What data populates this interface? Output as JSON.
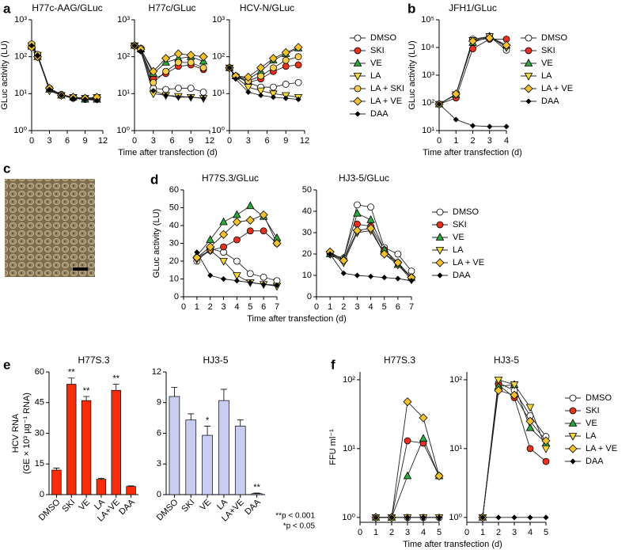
{
  "chart_data": [
    {
      "type": "line",
      "panel": "a",
      "title": "H77c-AAG/GLuc",
      "ylabel": "GLuc activity (LU)",
      "log_y": true,
      "x": [
        0,
        1,
        3,
        5,
        7,
        9,
        11
      ],
      "xlim": [
        0,
        12
      ],
      "xticks": [
        0,
        3,
        6,
        9,
        12
      ],
      "ylim": [
        1,
        1000
      ],
      "yticks": [
        {
          "value": 1,
          "label": "10⁰"
        },
        {
          "value": 10,
          "label": "10¹"
        },
        {
          "value": 100,
          "label": "10²"
        },
        {
          "value": 1000,
          "label": "10³"
        }
      ],
      "series": [
        {
          "color": "#ffffff",
          "marker": "circle",
          "values": [
            200,
            110,
            14,
            9,
            8,
            7.5,
            7
          ]
        },
        {
          "color": "#e8321e",
          "marker": "circle",
          "values": [
            210,
            105,
            13,
            9,
            7.5,
            7,
            7.5
          ]
        },
        {
          "color": "#2ca83a",
          "marker": "triangle-up",
          "values": [
            190,
            100,
            13,
            9,
            8,
            7,
            7
          ]
        },
        {
          "color": "#f7d83c",
          "marker": "triangle-down",
          "values": [
            200,
            110,
            12,
            9,
            8,
            7.5,
            8
          ]
        },
        {
          "color": "#f6cf52",
          "marker": "circle",
          "values": [
            220,
            115,
            14,
            9.5,
            8,
            7.5,
            7.5
          ]
        },
        {
          "color": "#f2c12e",
          "marker": "diamond",
          "values": [
            180,
            100,
            14,
            9,
            8,
            7.5,
            8
          ]
        },
        {
          "color": "#000000",
          "marker": "diamond-small",
          "values": [
            200,
            105,
            13,
            9,
            7.5,
            7,
            6.5
          ]
        }
      ]
    },
    {
      "type": "line",
      "title": "H77c/GLuc",
      "xlabel": "Time after transfection (d)",
      "log_y": true,
      "x": [
        0,
        1,
        3,
        5,
        7,
        9,
        11
      ],
      "xlim": [
        0,
        12
      ],
      "xticks": [
        0,
        3,
        6,
        9,
        12
      ],
      "ylim": [
        1,
        1000
      ],
      "yticks": [
        {
          "value": 1,
          "label": "10⁰"
        },
        {
          "value": 10,
          "label": "10¹"
        },
        {
          "value": 100,
          "label": "10²"
        },
        {
          "value": 1000,
          "label": "10³"
        }
      ],
      "series": [
        {
          "color": "#ffffff",
          "marker": "circle",
          "values": [
            200,
            170,
            14,
            13,
            14,
            14,
            11
          ]
        },
        {
          "color": "#e8321e",
          "marker": "circle",
          "values": [
            200,
            150,
            25,
            35,
            55,
            60,
            45
          ]
        },
        {
          "color": "#2ca83a",
          "marker": "triangle-up",
          "values": [
            200,
            160,
            35,
            70,
            90,
            100,
            75
          ]
        },
        {
          "color": "#f7d83c",
          "marker": "triangle-down",
          "values": [
            200,
            150,
            10,
            9,
            8.5,
            8,
            7.5
          ]
        },
        {
          "color": "#f6cf52",
          "marker": "circle",
          "values": [
            200,
            155,
            20,
            40,
            70,
            70,
            50
          ]
        },
        {
          "color": "#f2c12e",
          "marker": "diamond",
          "values": [
            200,
            160,
            40,
            90,
            120,
            110,
            100
          ]
        },
        {
          "color": "#000000",
          "marker": "diamond-small",
          "values": [
            200,
            140,
            12,
            9,
            8,
            8,
            7.5
          ]
        }
      ]
    },
    {
      "type": "line",
      "title": "HCV-N/GLuc",
      "log_y": true,
      "x": [
        0,
        1,
        3,
        5,
        7,
        9,
        11
      ],
      "xlim": [
        0,
        12
      ],
      "xticks": [
        0,
        3,
        6,
        9,
        12
      ],
      "ylim": [
        1,
        1000
      ],
      "yticks": [
        {
          "value": 1,
          "label": "10⁰"
        },
        {
          "value": 10,
          "label": "10¹"
        },
        {
          "value": 100,
          "label": "10²"
        },
        {
          "value": 1000,
          "label": "10³"
        }
      ],
      "series": [
        {
          "name": "DMSO",
          "color": "#ffffff",
          "marker": "circle",
          "values": [
            50,
            30,
            20,
            15,
            15,
            18,
            20
          ]
        },
        {
          "name": "SKI",
          "color": "#e8321e",
          "marker": "circle",
          "values": [
            50,
            30,
            20,
            25,
            40,
            55,
            60
          ]
        },
        {
          "name": "VE",
          "color": "#2ca83a",
          "marker": "triangle-up",
          "values": [
            50,
            30,
            25,
            40,
            80,
            120,
            170
          ]
        },
        {
          "name": "LA",
          "color": "#f7d83c",
          "marker": "triangle-down",
          "values": [
            50,
            28,
            15,
            12,
            10,
            9,
            8
          ]
        },
        {
          "name": "LA + SKI",
          "color": "#f6cf52",
          "marker": "circle",
          "values": [
            50,
            30,
            22,
            30,
            50,
            80,
            100
          ]
        },
        {
          "name": "LA + VE",
          "color": "#f2c12e",
          "marker": "diamond",
          "values": [
            50,
            30,
            28,
            50,
            90,
            130,
            180
          ]
        },
        {
          "name": "DAA",
          "color": "#000000",
          "marker": "diamond-small",
          "values": [
            50,
            25,
            11,
            9,
            8,
            7.5,
            7
          ]
        }
      ]
    },
    {
      "type": "line",
      "panel": "b",
      "title": "JFH1/GLuc",
      "ylabel": "GLuc activity (LU)",
      "xlabel": "Time after transfection (d)",
      "log_y": true,
      "x": [
        0,
        1,
        2,
        3,
        4
      ],
      "xlim": [
        0,
        4
      ],
      "xticks": [
        0,
        1,
        2,
        3,
        4
      ],
      "ylim": [
        10,
        100000
      ],
      "yticks": [
        {
          "value": 10,
          "label": "10¹"
        },
        {
          "value": 100,
          "label": "10²"
        },
        {
          "value": 1000,
          "label": "10³"
        },
        {
          "value": 10000,
          "label": "10⁴"
        },
        {
          "value": 100000,
          "label": "10⁵"
        }
      ],
      "series": [
        {
          "name": "DMSO",
          "color": "#ffffff",
          "marker": "circle",
          "values": [
            90,
            200,
            20000,
            25000,
            8000
          ]
        },
        {
          "name": "SKI",
          "color": "#e8321e",
          "marker": "circle",
          "values": [
            90,
            150,
            9000,
            20000,
            20000
          ]
        },
        {
          "name": "VE",
          "color": "#2ca83a",
          "marker": "triangle-up",
          "values": [
            90,
            200,
            15000,
            25000,
            12000
          ]
        },
        {
          "name": "LA",
          "color": "#f7d83c",
          "marker": "triangle-down",
          "values": [
            90,
            200,
            18000,
            25000,
            10000
          ]
        },
        {
          "name": "LA + VE",
          "color": "#f2c12e",
          "marker": "diamond",
          "values": [
            90,
            210,
            17000,
            22000,
            12000
          ]
        },
        {
          "name": "DAA",
          "color": "#000000",
          "marker": "diamond-small",
          "values": [
            90,
            25,
            15,
            14,
            14
          ]
        }
      ]
    },
    {
      "type": "line",
      "panel": "d",
      "title": "H77S.3/GLuc",
      "ylabel": "GLuc activity (LU)",
      "xlabel": "Time after transfection (d)",
      "x": [
        1,
        2,
        3,
        4,
        5,
        6,
        7
      ],
      "xlim": [
        0,
        7
      ],
      "xticks": [
        0,
        1,
        2,
        3,
        4,
        5,
        6,
        7
      ],
      "ylim": [
        0,
        60
      ],
      "yticks": [
        0,
        10,
        20,
        30,
        40,
        50,
        60
      ],
      "series": [
        {
          "color": "#ffffff",
          "marker": "circle",
          "values": [
            20,
            27,
            25,
            20,
            13,
            11,
            9
          ]
        },
        {
          "color": "#e8321e",
          "marker": "circle",
          "values": [
            22,
            26,
            28,
            32,
            37,
            37,
            30
          ]
        },
        {
          "color": "#2ca83a",
          "marker": "triangle-up",
          "values": [
            23,
            32,
            42,
            46,
            51,
            45,
            33
          ]
        },
        {
          "color": "#f7d83c",
          "marker": "triangle-down",
          "values": [
            21,
            26,
            20,
            12,
            8,
            7,
            6
          ]
        },
        {
          "color": "#f2c12e",
          "marker": "diamond",
          "values": [
            22,
            28,
            35,
            42,
            43,
            46,
            30
          ]
        },
        {
          "color": "#000000",
          "marker": "diamond-small",
          "values": [
            25,
            12,
            10,
            9,
            8,
            7,
            6.5
          ]
        }
      ]
    },
    {
      "type": "line",
      "title": "HJ3-5/GLuc",
      "x": [
        1,
        2,
        3,
        4,
        5,
        6,
        7
      ],
      "xlim": [
        0,
        7
      ],
      "xticks": [
        0,
        1,
        2,
        3,
        4,
        5,
        6,
        7
      ],
      "ylim": [
        0,
        50
      ],
      "yticks": [
        0,
        10,
        20,
        30,
        40,
        50
      ],
      "series": [
        {
          "name": "DMSO",
          "color": "#ffffff",
          "marker": "circle",
          "values": [
            20,
            18,
            43,
            42,
            23,
            20,
            12
          ]
        },
        {
          "name": "SKI",
          "color": "#e8321e",
          "marker": "circle",
          "values": [
            20,
            17,
            34,
            33,
            22,
            16,
            9
          ]
        },
        {
          "name": "VE",
          "color": "#2ca83a",
          "marker": "triangle-up",
          "values": [
            20,
            18,
            39,
            36,
            22,
            15,
            9
          ]
        },
        {
          "name": "LA",
          "color": "#f7d83c",
          "marker": "triangle-down",
          "values": [
            20,
            16,
            30,
            31,
            20,
            15,
            8
          ]
        },
        {
          "name": "LA + VE",
          "color": "#f2c12e",
          "marker": "diamond",
          "values": [
            21,
            17,
            31,
            32,
            20,
            16,
            9
          ]
        },
        {
          "name": "DAA",
          "color": "#000000",
          "marker": "diamond-small",
          "values": [
            20,
            11,
            10,
            9.5,
            9,
            8.5,
            7.5
          ]
        }
      ]
    },
    {
      "type": "bar",
      "panel": "e",
      "title": "H77S.3",
      "ylabel": [
        "HCV RNA",
        "(GE × 10³ µg⁻¹ RNA)"
      ],
      "color": "#f52d0a",
      "categories": [
        "DMSO",
        "SKI",
        "VE",
        "LA",
        "LA+VE",
        "DAA"
      ],
      "values": [
        12,
        54,
        46,
        7.5,
        51,
        4
      ],
      "errors": [
        1,
        3,
        2,
        0.5,
        3,
        0.3
      ],
      "significance": [
        null,
        "**",
        "**",
        null,
        "**",
        null
      ],
      "ylim": [
        0,
        60
      ],
      "yticks": [
        0,
        15,
        30,
        45,
        60
      ]
    },
    {
      "type": "bar",
      "title": "HJ3-5",
      "color": "#c9cdf2",
      "categories": [
        "DMSO",
        "SKI",
        "VE",
        "LA",
        "LA+VE",
        "DAA"
      ],
      "values": [
        9.6,
        7.3,
        5.8,
        9.2,
        6.7,
        0.1
      ],
      "errors": [
        0.9,
        0.6,
        0.9,
        1.1,
        0.6,
        0.05
      ],
      "significance": [
        null,
        null,
        "*",
        null,
        null,
        "**"
      ],
      "notes": [
        "**p < 0.001",
        "*p < 0.05"
      ],
      "ylim": [
        0,
        12
      ],
      "yticks": [
        0,
        3,
        6,
        9,
        12
      ]
    },
    {
      "type": "line",
      "panel": "f",
      "title": "H77S.3",
      "ylabel": "FFU ml⁻¹",
      "xlabel": "Time after transfection (d)",
      "log_y": true,
      "x": [
        1,
        2,
        3,
        4,
        5
      ],
      "xlim": [
        0,
        5
      ],
      "xticks": [
        0,
        1,
        2,
        3,
        4,
        5
      ],
      "ylim": [
        0.85,
        130
      ],
      "yticks": [
        {
          "value": 1,
          "label": "10⁰"
        },
        {
          "value": 10,
          "label": "10¹"
        },
        {
          "value": 100,
          "label": "10²"
        }
      ],
      "series": [
        {
          "color": "#ffffff",
          "marker": "circle",
          "values": [
            1,
            1,
            1,
            1,
            1
          ]
        },
        {
          "color": "#e8321e",
          "marker": "circle",
          "values": [
            1,
            1,
            13,
            12,
            4
          ]
        },
        {
          "color": "#2ca83a",
          "marker": "triangle-up",
          "values": [
            1,
            1,
            4,
            14,
            4
          ]
        },
        {
          "color": "#f7d83c",
          "marker": "triangle-down",
          "values": [
            1,
            1,
            1,
            1,
            1
          ]
        },
        {
          "color": "#f2c12e",
          "marker": "diamond",
          "values": [
            1,
            1,
            48,
            28,
            4
          ]
        },
        {
          "color": "#000000",
          "marker": "diamond-small",
          "values": [
            1,
            1,
            1,
            1,
            1
          ]
        }
      ]
    },
    {
      "type": "line",
      "title": "HJ3-5",
      "log_y": true,
      "x": [
        1,
        2,
        3,
        4,
        5
      ],
      "xlim": [
        0,
        5
      ],
      "xticks": [
        0,
        1,
        2,
        3,
        4,
        5
      ],
      "ylim": [
        0.85,
        130
      ],
      "yticks": [
        {
          "value": 1,
          "label": "10⁰"
        },
        {
          "value": 10,
          "label": "10¹"
        },
        {
          "value": 100,
          "label": "10²"
        }
      ],
      "series": [
        {
          "name": "DMSO",
          "color": "#ffffff",
          "marker": "circle",
          "values": [
            1,
            90,
            70,
            30,
            15
          ]
        },
        {
          "name": "SKI",
          "color": "#e8321e",
          "marker": "circle",
          "values": [
            1,
            85,
            55,
            10,
            6.5
          ]
        },
        {
          "name": "VE",
          "color": "#2ca83a",
          "marker": "triangle-up",
          "values": [
            1,
            80,
            85,
            20,
            12
          ]
        },
        {
          "name": "LA",
          "color": "#f7d83c",
          "marker": "triangle-down",
          "values": [
            1,
            100,
            85,
            40,
            10
          ]
        },
        {
          "name": "LA + VE",
          "color": "#f2c12e",
          "marker": "diamond",
          "values": [
            1,
            70,
            60,
            25,
            13
          ]
        },
        {
          "name": "DAA",
          "color": "#000000",
          "marker": "diamond-small",
          "values": [
            1,
            1,
            1,
            1,
            1
          ]
        }
      ]
    }
  ],
  "image_panel": {
    "panel": "c"
  }
}
